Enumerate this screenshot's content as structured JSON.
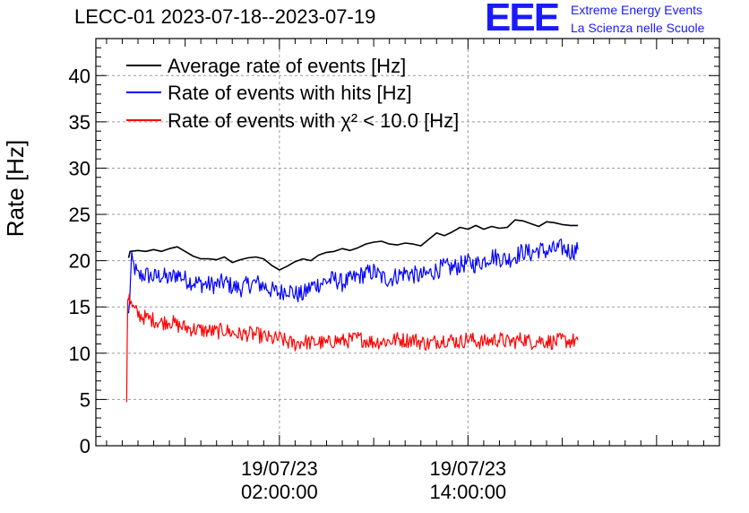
{
  "header": {
    "title": "LECC-01 2023-07-18--2023-07-19",
    "logo_mark": "EEE",
    "logo_line1": "Extreme Energy Events",
    "logo_line2": "La Scienza nelle Scuole"
  },
  "colors": {
    "average": "#000000",
    "hits": "#0000ff",
    "chi2": "#ff0000",
    "logo": "#1a1aff",
    "grid": "#9a9a9a"
  },
  "chart_data": {
    "type": "line",
    "ylabel": "Rate [Hz]",
    "xlabel": "",
    "ylim": [
      0,
      44
    ],
    "yticks": [
      0,
      5,
      10,
      15,
      20,
      25,
      30,
      35,
      40
    ],
    "x_units": "hours",
    "xlim": [
      -9.68,
      30.0
    ],
    "xticks": [
      {
        "x": 2,
        "date": "19/07/23",
        "time": "02:00:00"
      },
      {
        "x": 14,
        "date": "19/07/23",
        "time": "14:00:00"
      }
    ],
    "grid": true,
    "legend_position": "top-left",
    "series": [
      {
        "name": "Average rate of events [Hz]",
        "style": "line",
        "x": [
          -7.6,
          -7.5,
          -7.0,
          -6.5,
          -6.0,
          -5.5,
          -5.0,
          -4.5,
          -4.0,
          -3.5,
          -3.0,
          -2.5,
          -2.0,
          -1.5,
          -1.0,
          -0.5,
          0.0,
          0.5,
          1.0,
          1.5,
          2.0,
          2.5,
          3.0,
          3.5,
          4.0,
          4.5,
          5.0,
          5.5,
          6.0,
          6.5,
          7.0,
          7.5,
          8.0,
          8.5,
          9.0,
          9.5,
          10.0,
          10.5,
          11.0,
          11.5,
          12.0,
          12.5,
          13.0,
          13.5,
          14.0,
          14.5,
          15.0,
          15.5,
          16.0,
          16.5,
          17.0,
          17.5,
          18.0,
          18.5,
          19.0,
          19.5,
          20.0,
          20.5,
          21.0
        ],
        "y": [
          20.3,
          21.0,
          21.1,
          21.0,
          21.2,
          21.0,
          21.3,
          21.5,
          21.0,
          20.5,
          20.2,
          20.2,
          20.1,
          20.4,
          19.8,
          20.1,
          20.3,
          20.4,
          20.2,
          19.5,
          19.0,
          19.4,
          19.9,
          20.2,
          20.0,
          20.6,
          20.9,
          21.0,
          21.3,
          21.1,
          21.4,
          21.8,
          22.0,
          22.1,
          21.8,
          21.7,
          21.9,
          21.8,
          21.6,
          22.3,
          23.0,
          22.7,
          23.1,
          23.6,
          23.4,
          23.8,
          23.4,
          23.7,
          23.5,
          23.6,
          24.4,
          24.3,
          24.0,
          23.7,
          24.2,
          24.1,
          23.9,
          23.8,
          23.8
        ]
      },
      {
        "name": "Rate of events with hits [Hz]",
        "style": "noisy",
        "noise": 1.0,
        "x": [
          -7.6,
          -7.4,
          -7.0,
          -6.5,
          -6.0,
          -5.5,
          -5.0,
          -4.5,
          -4.0,
          -3.5,
          -3.0,
          -2.5,
          -2.0,
          -1.5,
          -1.0,
          -0.5,
          0.0,
          0.5,
          1.0,
          1.5,
          2.0,
          2.5,
          3.0,
          3.5,
          4.0,
          4.5,
          5.0,
          5.5,
          6.0,
          6.5,
          7.0,
          7.5,
          8.0,
          8.5,
          9.0,
          9.5,
          10.0,
          10.5,
          11.0,
          11.5,
          12.0,
          12.5,
          13.0,
          13.5,
          14.0,
          14.5,
          15.0,
          15.5,
          16.0,
          16.5,
          17.0,
          17.5,
          18.0,
          18.5,
          19.0,
          19.5,
          20.0,
          20.5,
          21.0
        ],
        "y": [
          14.0,
          20.0,
          18.3,
          18.5,
          18.2,
          18.4,
          18.0,
          18.6,
          18.0,
          17.7,
          17.5,
          17.4,
          17.4,
          17.7,
          17.2,
          17.0,
          17.4,
          17.6,
          17.3,
          16.8,
          16.5,
          17.0,
          16.4,
          16.3,
          17.2,
          17.5,
          17.8,
          18.0,
          17.6,
          17.9,
          18.3,
          18.6,
          18.8,
          18.2,
          18.0,
          18.4,
          18.7,
          18.5,
          18.3,
          18.6,
          19.0,
          19.3,
          19.2,
          19.5,
          19.8,
          19.6,
          20.0,
          20.5,
          20.3,
          20.1,
          20.5,
          21.0,
          20.8,
          21.2,
          21.0,
          21.2,
          21.4,
          21.0,
          21.2
        ]
      },
      {
        "name": "Rate of events with χ² < 10.0 [Hz]",
        "style": "noisy",
        "noise": 0.85,
        "x": [
          -7.72,
          -7.65,
          -7.55,
          -7.5,
          -7.3,
          -7.0,
          -6.5,
          -6.0,
          -5.5,
          -5.0,
          -4.5,
          -4.0,
          -3.5,
          -3.0,
          -2.5,
          -2.0,
          -1.5,
          -1.0,
          -0.5,
          0.0,
          0.5,
          1.0,
          1.5,
          2.0,
          2.5,
          3.0,
          3.5,
          4.0,
          4.5,
          5.0,
          5.5,
          6.0,
          6.5,
          7.0,
          7.5,
          8.0,
          8.5,
          9.0,
          9.5,
          10.0,
          10.5,
          11.0,
          11.5,
          12.0,
          12.5,
          13.0,
          13.5,
          14.0,
          14.5,
          15.0,
          15.5,
          16.0,
          16.5,
          17.0,
          17.5,
          18.0,
          18.5,
          19.0,
          19.5,
          20.0,
          20.5,
          21.0
        ],
        "y": [
          5.2,
          16.0,
          16.5,
          15.5,
          14.8,
          14.2,
          13.8,
          13.6,
          13.3,
          13.5,
          13.0,
          12.8,
          12.6,
          12.5,
          12.4,
          12.3,
          12.5,
          12.2,
          12.0,
          12.1,
          12.0,
          11.8,
          11.5,
          11.6,
          11.2,
          11.0,
          11.3,
          11.1,
          11.2,
          11.0,
          11.4,
          11.3,
          11.4,
          11.6,
          11.4,
          11.2,
          11.3,
          11.3,
          11.5,
          11.4,
          11.5,
          11.2,
          11.0,
          11.3,
          11.5,
          11.4,
          11.2,
          11.6,
          11.3,
          11.2,
          11.4,
          11.5,
          11.2,
          11.3,
          11.6,
          11.2,
          11.4,
          11.3,
          11.2,
          11.4,
          11.3,
          11.4
        ]
      }
    ]
  }
}
